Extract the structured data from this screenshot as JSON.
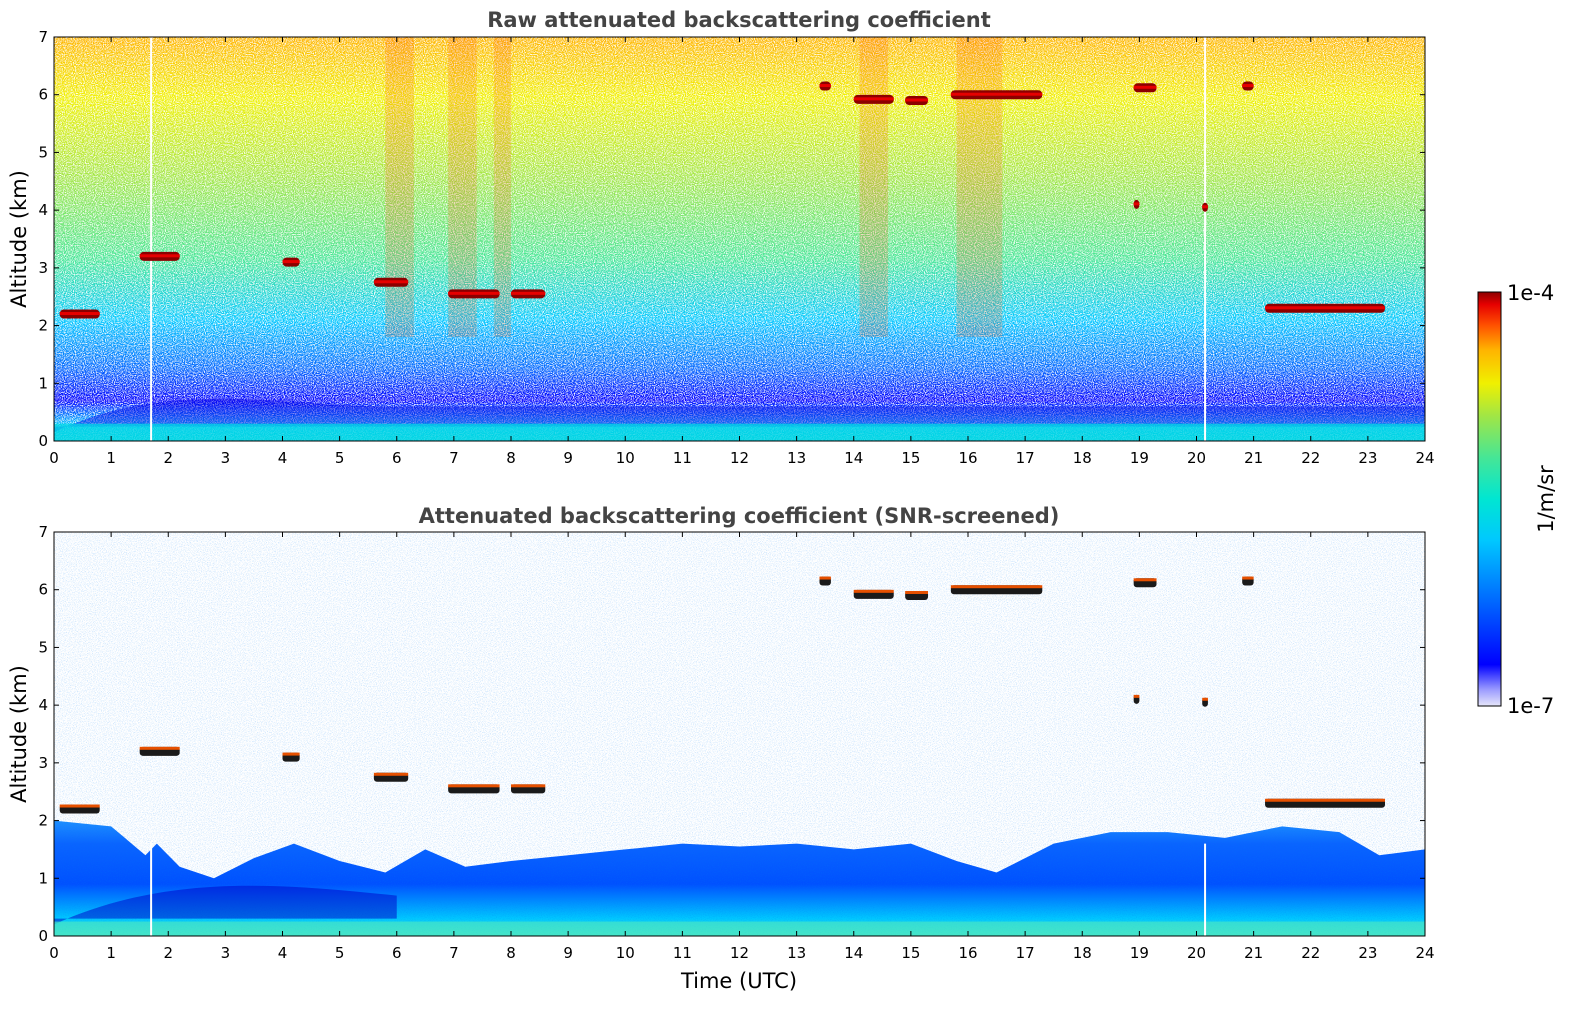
{
  "colormap": [
    "#e6e6fa",
    "#9a9aff",
    "#0000ff",
    "#0066ff",
    "#00c8ff",
    "#00e6d2",
    "#46e696",
    "#a0e646",
    "#f0f000",
    "#ffb400",
    "#ff5000",
    "#e60000",
    "#8c0000"
  ],
  "chart_data": [
    {
      "type": "heatmap",
      "title": "Raw attenuated backscattering coefficient",
      "xlabel": "",
      "ylabel": "Altitude (km)",
      "xlim": [
        0,
        24
      ],
      "ylim": [
        0,
        7
      ],
      "xticks": [
        "0",
        "1",
        "2",
        "3",
        "4",
        "5",
        "6",
        "7",
        "8",
        "9",
        "10",
        "11",
        "12",
        "13",
        "14",
        "15",
        "16",
        "17",
        "18",
        "19",
        "20",
        "21",
        "22",
        "23",
        "24"
      ],
      "yticks": [
        "0",
        "1",
        "2",
        "3",
        "4",
        "5",
        "6",
        "7"
      ],
      "background": "noisy signal increasing with altitude, dense boundary layer below 1 km",
      "cloud_layers": [
        {
          "t": [
            13.4,
            13.6
          ],
          "z": 6.15
        },
        {
          "t": [
            14.0,
            14.7
          ],
          "z": 5.92
        },
        {
          "t": [
            14.9,
            15.3
          ],
          "z": 5.9
        },
        {
          "t": [
            15.7,
            17.3
          ],
          "z": 6.0
        },
        {
          "t": [
            18.9,
            19.3
          ],
          "z": 6.12
        },
        {
          "t": [
            20.8,
            21.0
          ],
          "z": 6.15
        },
        {
          "t": [
            0.1,
            0.8
          ],
          "z": 2.2
        },
        {
          "t": [
            1.5,
            2.2
          ],
          "z": 3.2
        },
        {
          "t": [
            4.0,
            4.3
          ],
          "z": 3.1
        },
        {
          "t": [
            5.6,
            6.2
          ],
          "z": 2.75
        },
        {
          "t": [
            6.9,
            7.8
          ],
          "z": 2.55
        },
        {
          "t": [
            8.0,
            8.6
          ],
          "z": 2.55
        },
        {
          "t": [
            21.2,
            23.3
          ],
          "z": 2.3
        },
        {
          "t": [
            18.9,
            19.0
          ],
          "z": 4.1
        },
        {
          "t": [
            20.1,
            20.2
          ],
          "z": 4.05
        }
      ]
    },
    {
      "type": "heatmap",
      "title": "Attenuated backscattering coefficient (SNR-screened)",
      "xlabel": "Time (UTC)",
      "ylabel": "Altitude (km)",
      "xlim": [
        0,
        24
      ],
      "ylim": [
        0,
        7
      ],
      "xticks": [
        "0",
        "1",
        "2",
        "3",
        "4",
        "5",
        "6",
        "7",
        "8",
        "9",
        "10",
        "11",
        "12",
        "13",
        "14",
        "15",
        "16",
        "17",
        "18",
        "19",
        "20",
        "21",
        "22",
        "23",
        "24"
      ],
      "yticks": [
        "0",
        "1",
        "2",
        "3",
        "4",
        "5",
        "6",
        "7"
      ],
      "background": "only boundary layer below ~2 km and cloud features retained"
    }
  ],
  "colorbar": {
    "top_label": "1e-4",
    "bottom_label": "1e-7",
    "unit_label": "1/m/sr"
  }
}
